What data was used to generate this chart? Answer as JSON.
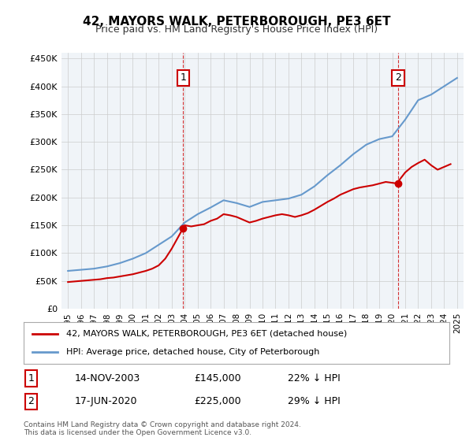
{
  "title": "42, MAYORS WALK, PETERBOROUGH, PE3 6ET",
  "subtitle": "Price paid vs. HM Land Registry's House Price Index (HPI)",
  "footer": "Contains HM Land Registry data © Crown copyright and database right 2024.\nThis data is licensed under the Open Government Licence v3.0.",
  "legend_line1": "42, MAYORS WALK, PETERBOROUGH, PE3 6ET (detached house)",
  "legend_line2": "HPI: Average price, detached house, City of Peterborough",
  "annotation1_label": "1",
  "annotation1_date": "14-NOV-2003",
  "annotation1_price": "£145,000",
  "annotation1_hpi": "22% ↓ HPI",
  "annotation2_label": "2",
  "annotation2_date": "17-JUN-2020",
  "annotation2_price": "£225,000",
  "annotation2_hpi": "29% ↓ HPI",
  "hpi_color": "#6699cc",
  "price_color": "#cc0000",
  "annotation_color": "#cc0000",
  "background_color": "#ffffff",
  "plot_bg_color": "#f0f4f8",
  "grid_color": "#cccccc",
  "years": [
    1995,
    1996,
    1997,
    1998,
    1999,
    2000,
    2001,
    2002,
    2003,
    2004,
    2005,
    2006,
    2007,
    2008,
    2009,
    2010,
    2011,
    2012,
    2013,
    2014,
    2015,
    2016,
    2017,
    2018,
    2019,
    2020,
    2021,
    2022,
    2023,
    2024,
    2025
  ],
  "hpi_values": [
    68000,
    70000,
    72000,
    76000,
    82000,
    90000,
    100000,
    115000,
    130000,
    155000,
    170000,
    182000,
    195000,
    190000,
    183000,
    192000,
    195000,
    198000,
    205000,
    220000,
    240000,
    258000,
    278000,
    295000,
    305000,
    310000,
    340000,
    375000,
    385000,
    400000,
    415000
  ],
  "price_x": [
    1995.0,
    1995.5,
    1996.0,
    1996.5,
    1997.0,
    1997.5,
    1998.0,
    1998.5,
    1999.0,
    1999.5,
    2000.0,
    2000.5,
    2001.0,
    2001.5,
    2002.0,
    2002.5,
    2003.0,
    2003.88,
    2004.0,
    2004.5,
    2005.0,
    2005.5,
    2006.0,
    2006.5,
    2007.0,
    2007.5,
    2008.0,
    2008.5,
    2009.0,
    2009.5,
    2010.0,
    2010.5,
    2011.0,
    2011.5,
    2012.0,
    2012.5,
    2013.0,
    2013.5,
    2014.0,
    2014.5,
    2015.0,
    2015.5,
    2016.0,
    2016.5,
    2017.0,
    2017.5,
    2018.0,
    2018.5,
    2019.0,
    2019.5,
    2020.46,
    2020.5,
    2021.0,
    2021.5,
    2022.0,
    2022.5,
    2023.0,
    2023.5,
    2024.0,
    2024.5
  ],
  "price_values": [
    48000,
    49000,
    50000,
    51000,
    52000,
    53000,
    55000,
    56000,
    58000,
    60000,
    62000,
    65000,
    68000,
    72000,
    78000,
    90000,
    108000,
    145000,
    150000,
    148000,
    150000,
    152000,
    158000,
    162000,
    170000,
    168000,
    165000,
    160000,
    155000,
    158000,
    162000,
    165000,
    168000,
    170000,
    168000,
    165000,
    168000,
    172000,
    178000,
    185000,
    192000,
    198000,
    205000,
    210000,
    215000,
    218000,
    220000,
    222000,
    225000,
    228000,
    225000,
    230000,
    245000,
    255000,
    262000,
    268000,
    258000,
    250000,
    255000,
    260000
  ],
  "ylim": [
    0,
    460000
  ],
  "yticks": [
    0,
    50000,
    100000,
    150000,
    200000,
    250000,
    300000,
    350000,
    400000,
    450000
  ],
  "ytick_labels": [
    "£0",
    "£50K",
    "£100K",
    "£150K",
    "£200K",
    "£250K",
    "£300K",
    "£350K",
    "£400K",
    "£450K"
  ],
  "xlim_start": 1994.5,
  "xlim_end": 2025.5,
  "xtick_years": [
    1995,
    1996,
    1997,
    1998,
    1999,
    2000,
    2001,
    2002,
    2003,
    2004,
    2005,
    2006,
    2007,
    2008,
    2009,
    2010,
    2011,
    2012,
    2013,
    2014,
    2015,
    2016,
    2017,
    2018,
    2019,
    2020,
    2021,
    2022,
    2023,
    2024,
    2025
  ],
  "sale1_x": 2003.88,
  "sale1_y": 145000,
  "sale2_x": 2020.46,
  "sale2_y": 225000
}
